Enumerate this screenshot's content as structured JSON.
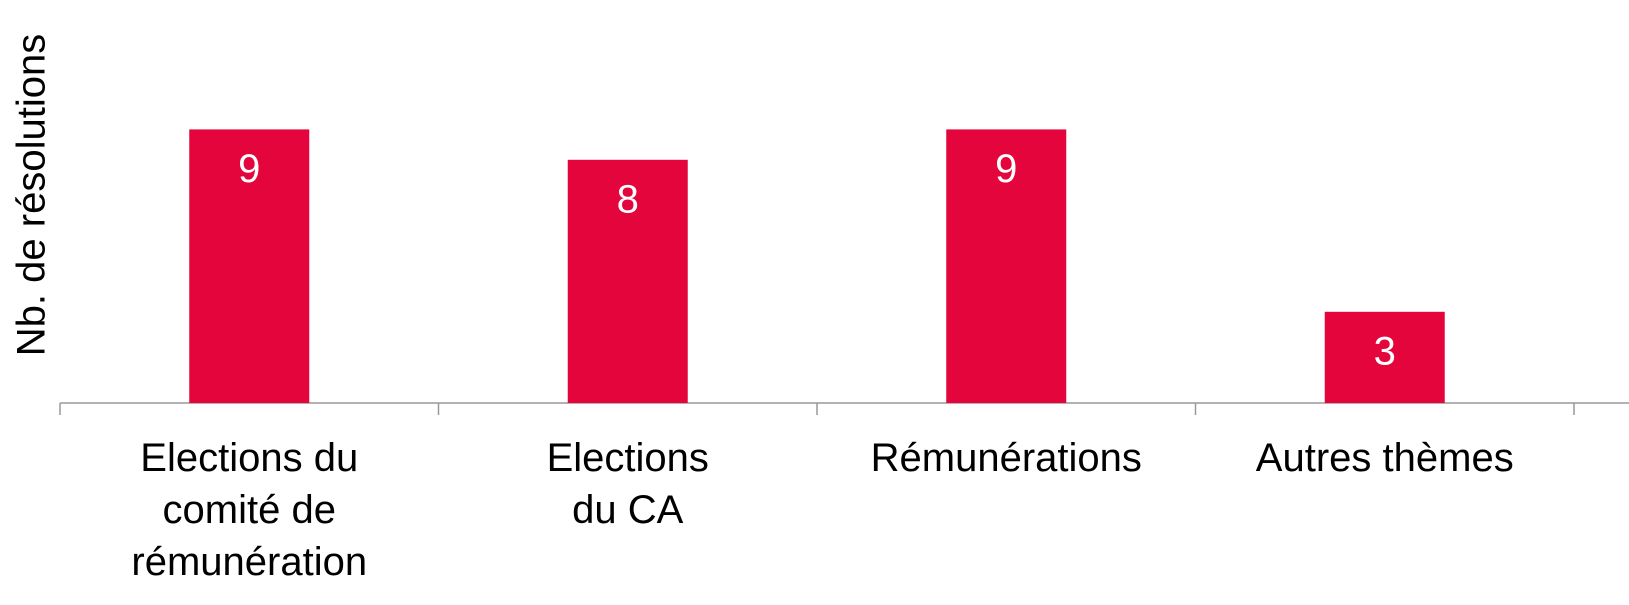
{
  "chart_data": {
    "type": "bar",
    "y_label": "Nb. de résolutions",
    "categories": [
      "Elections du\ncomité de\nrémunération",
      "Elections\ndu CA",
      "Rémunérations",
      "Autres thèmes"
    ],
    "values": [
      9,
      8,
      9,
      3
    ],
    "color": "#e4053c",
    "ylim": [
      0,
      10
    ]
  }
}
